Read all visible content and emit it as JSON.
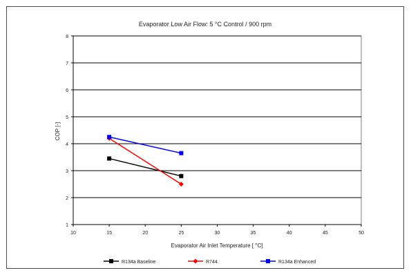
{
  "chart_data": {
    "type": "line",
    "title": "Evaporator Low Air Flow: 5 °C Control / 900 rpm",
    "xlabel": "Evaporator Air Inlet Temperature [ °C]",
    "ylabel": "COP [-]",
    "xlim": [
      10,
      50
    ],
    "ylim": [
      1,
      8
    ],
    "xticks": [
      10,
      15,
      20,
      25,
      30,
      35,
      40,
      45,
      50
    ],
    "yticks": [
      1,
      2,
      3,
      4,
      5,
      6,
      7,
      8
    ],
    "grid": "horizontal",
    "legend": "bottom",
    "series": [
      {
        "name": "R134a Baseline",
        "color": "#000000",
        "marker": "square",
        "x": [
          15,
          25
        ],
        "y": [
          3.45,
          2.8
        ]
      },
      {
        "name": "R744",
        "color": "#ff0000",
        "marker": "diamond",
        "x": [
          15,
          25
        ],
        "y": [
          4.2,
          2.5
        ]
      },
      {
        "name": "R134a Enhanced",
        "color": "#0000ff",
        "marker": "square",
        "x": [
          15,
          25
        ],
        "y": [
          4.25,
          3.65
        ]
      }
    ]
  }
}
